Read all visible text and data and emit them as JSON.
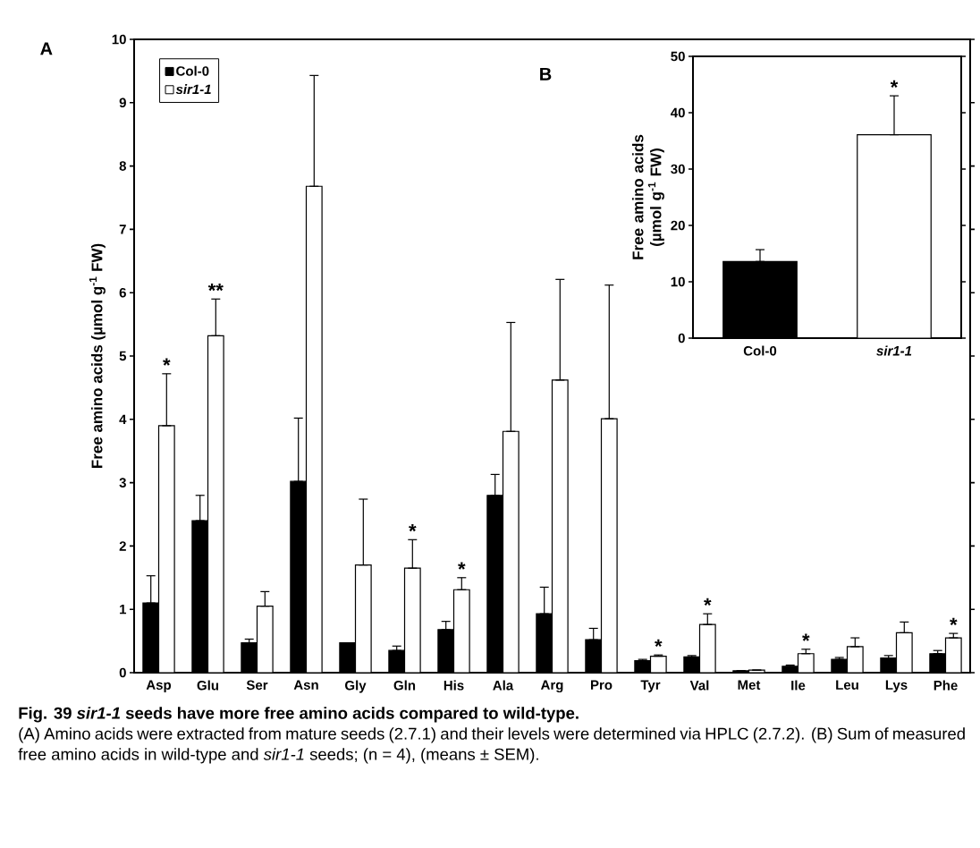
{
  "chart_data": [
    {
      "type": "bar",
      "ylabel": "Free amino acids (µmol g$^{-1}$ FW)",
      "categories": [
        "Asp",
        "Glu",
        "Ser",
        "Asn",
        "Gly",
        "Gln",
        "His",
        "Ala",
        "Arg",
        "Pro",
        "Tyr",
        "Val",
        "Met",
        "Ile",
        "Leu",
        "Lys",
        "Phe"
      ],
      "series": [
        {
          "name": "Col-0",
          "color": "#000000",
          "values": [
            1.1,
            2.4,
            0.47,
            3.02,
            0.47,
            0.35,
            0.68,
            2.8,
            0.93,
            0.52,
            0.19,
            0.25,
            0.03,
            0.1,
            0.21,
            0.23,
            0.3
          ],
          "errors": [
            [
              1.1,
              1.53
            ],
            [
              2.4,
              2.8
            ],
            [
              0.47,
              0.53
            ],
            [
              3.02,
              4.02
            ],
            null,
            [
              0.35,
              0.42
            ],
            [
              0.68,
              0.81
            ],
            [
              2.8,
              3.13
            ],
            [
              0.93,
              1.35
            ],
            [
              0.52,
              0.7
            ],
            [
              0.19,
              0.21
            ],
            [
              0.25,
              0.27
            ],
            null,
            [
              0.1,
              0.12
            ],
            [
              0.21,
              0.24
            ],
            [
              0.23,
              0.27
            ],
            [
              0.3,
              0.35
            ]
          ]
        },
        {
          "name": "sir1-1",
          "color": "#ffffff",
          "values": [
            3.9,
            5.32,
            1.05,
            7.68,
            1.7,
            1.65,
            1.31,
            3.81,
            4.62,
            4.01,
            0.26,
            0.76,
            0.04,
            0.3,
            0.41,
            0.63,
            0.55
          ],
          "errors": [
            [
              3.9,
              4.72
            ],
            [
              5.32,
              5.9
            ],
            [
              1.05,
              1.28
            ],
            [
              7.68,
              9.43
            ],
            [
              1.7,
              2.74
            ],
            [
              1.65,
              2.1
            ],
            [
              1.31,
              1.5
            ],
            [
              3.81,
              5.53
            ],
            [
              4.62,
              6.21
            ],
            [
              4.01,
              6.12
            ],
            [
              0.26,
              0.28
            ],
            [
              0.76,
              0.93
            ],
            null,
            [
              0.3,
              0.37
            ],
            [
              0.41,
              0.55
            ],
            [
              0.63,
              0.8
            ],
            [
              0.55,
              0.62
            ]
          ]
        }
      ],
      "ylim": [
        0,
        10
      ],
      "yticks": [
        0,
        1,
        2,
        3,
        4,
        5,
        6,
        7,
        8,
        9,
        10
      ],
      "legend": "top left",
      "annotations": [
        "A",
        {
          "text": "*",
          "x": "Asp",
          "y": 4.72
        },
        {
          "text": "**",
          "x": "Glu",
          "y": 5.9
        },
        {
          "text": "*",
          "x": "Gln",
          "y": 2.1
        },
        {
          "text": "*",
          "x": "His",
          "y": 1.5
        },
        {
          "text": "*",
          "x": "Tyr",
          "y": 0.28
        },
        {
          "text": "*",
          "x": "Val",
          "y": 0.93
        },
        {
          "text": "*",
          "x": "Ile",
          "y": 0.37
        },
        {
          "text": "*",
          "x": "Phe",
          "y": 0.62
        },
        "Fig. 39 *sir1-1* seeds have more free amino acids compared to wild-type.",
        "(A) Amino acids were extracted from mature seeds (2.7.1) and their levels were determined via HPLC (2.7.2). (B) Sum of measured free amino acids in wild-type and *sir1-1* seeds; (n = 4), (means ± SEM)."
      ]
    },
    {
      "type": "bar",
      "ylabel": "Free amino acids (µmol g$^{-1}$ FW)",
      "categories": [
        "Col-0",
        "sir1-1"
      ],
      "values": [
        13.6,
        36.1
      ],
      "colors": [
        "#000000",
        "#ffffff"
      ],
      "errors": [
        [
          13.6,
          15.7
        ],
        [
          36.1,
          43.0
        ]
      ],
      "ylim": [
        0,
        50
      ],
      "yticks": [
        0,
        10,
        20,
        30,
        40,
        50
      ],
      "annotations": [
        "B",
        {
          "text": "*",
          "x": "sir1-1",
          "y": 43.0
        }
      ]
    }
  ]
}
